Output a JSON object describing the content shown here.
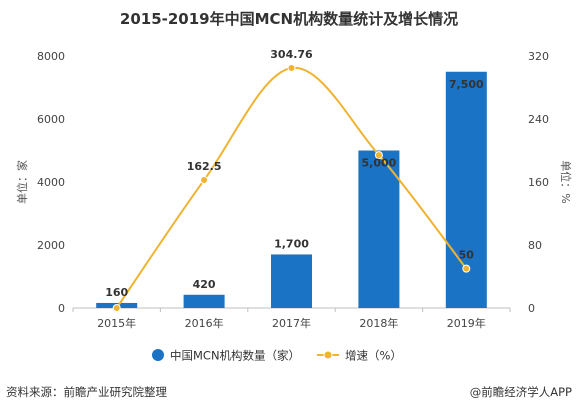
{
  "page": {
    "title": "2015-2019年中国MCN机构数量统计及增长情况",
    "footer_source": "资料来源：前瞻产业研究院整理",
    "footer_brand": "@前瞻经济学人APP"
  },
  "chart_data": {
    "type": "bar",
    "title": "2015-2019年中国MCN机构数量统计及增长情况",
    "categories": [
      "2015年",
      "2016年",
      "2017年",
      "2018年",
      "2019年"
    ],
    "series": [
      {
        "name": "中国MCN机构数量（家）",
        "type": "bar",
        "axis": "left",
        "values": [
          160,
          420,
          1700,
          5000,
          7500
        ],
        "labels": [
          "160",
          "420",
          "1,700",
          "5,000",
          "7,500"
        ]
      },
      {
        "name": "增速（%）",
        "type": "line",
        "axis": "right",
        "values": [
          null,
          162.5,
          304.76,
          194.12,
          50
        ],
        "labels": [
          "",
          "162.5",
          "304.76",
          "",
          "50"
        ]
      }
    ],
    "ylabel_left": "单位：家",
    "ylabel_right": "单位：%",
    "ylim_left": [
      0,
      8000
    ],
    "yticks_left": [
      "0",
      "2000",
      "4000",
      "6000",
      "8000"
    ],
    "ylim_right": [
      0,
      320
    ],
    "yticks_right": [
      "0",
      "80",
      "160",
      "240",
      "320"
    ],
    "colors": {
      "bar": "#1a73c4",
      "line": "#f0b331",
      "axis": "#bfbfbf"
    },
    "grid": false,
    "legend": "bottom"
  }
}
